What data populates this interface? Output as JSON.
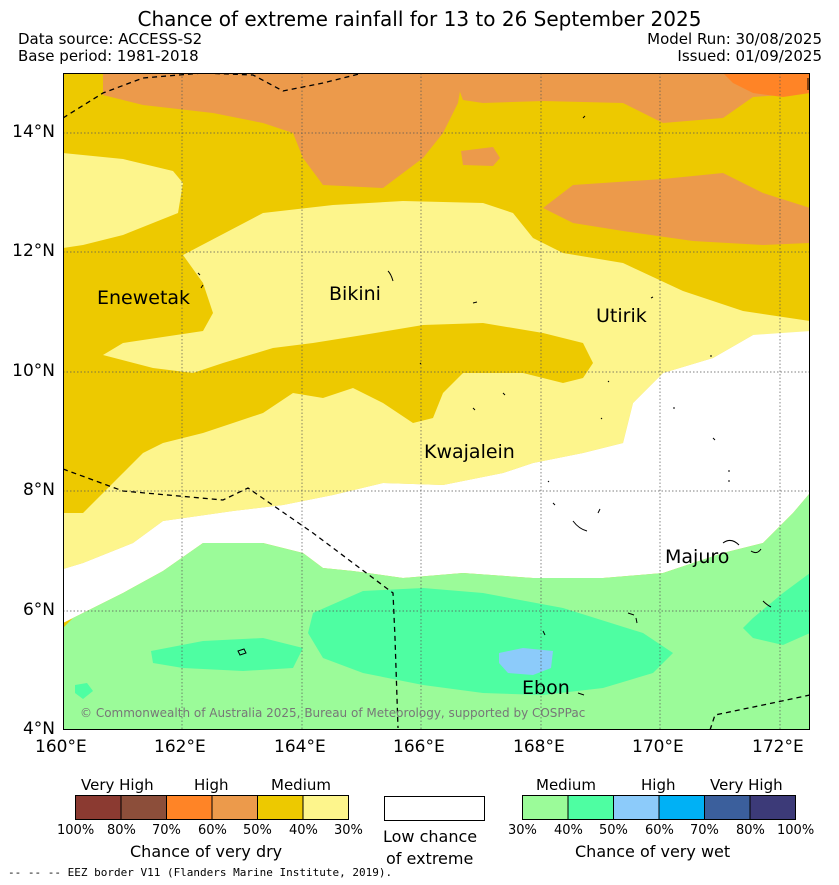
{
  "title": "Chance of extreme rainfall for 13 to 26 September 2025",
  "header": {
    "data_source": "Data source: ACCESS-S2",
    "base_period": "Base period: 1981-2018",
    "model_run": "Model Run: 30/08/2025",
    "issued": "Issued: 01/09/2025"
  },
  "map": {
    "lon_range": [
      160,
      172.5
    ],
    "lat_range": [
      4,
      15
    ],
    "lat_ticks": [
      "4°N",
      "6°N",
      "8°N",
      "10°N",
      "12°N",
      "14°N"
    ],
    "lon_ticks": [
      "160°E",
      "162°E",
      "164°E",
      "166°E",
      "168°E",
      "170°E",
      "172°E"
    ],
    "places": [
      {
        "name": "Enewetak",
        "lon": 160.6,
        "lat": 11.2
      },
      {
        "name": "Bikini",
        "lon": 164.45,
        "lat": 11.3
      },
      {
        "name": "Utirik",
        "lon": 168.95,
        "lat": 10.9
      },
      {
        "name": "Kwajalein",
        "lon": 166.1,
        "lat": 8.6
      },
      {
        "name": "Majuro",
        "lon": 170.1,
        "lat": 6.9
      },
      {
        "name": "Ebon",
        "lon": 167.75,
        "lat": 4.7
      }
    ],
    "copyright": "© Commonwealth of Australia 2025, Bureau of Meteorology, supported by COSPPac",
    "colors": {
      "dry_medium_low": "#fdf58c",
      "dry_medium_high": "#edc900",
      "dry_high_low": "#ec9a4b",
      "dry_high_high": "#ff8426",
      "low_chance": "#ffffff",
      "wet_medium_low": "#9bfb99",
      "wet_medium_high": "#4efea2",
      "wet_high_low": "#8ccbfa",
      "eez_border": "#000000"
    }
  },
  "legend": {
    "dry": {
      "headings": [
        "Very High",
        "High",
        "Medium"
      ],
      "ticks": [
        "100%",
        "80%",
        "70%",
        "60%",
        "50%",
        "40%",
        "30%"
      ],
      "colors": [
        "#8b3a31",
        "#8c4e3a",
        "#ff8426",
        "#ec9a4b",
        "#edc900",
        "#fdf58c"
      ],
      "title": "Chance of very dry"
    },
    "low": {
      "line1": "Low chance",
      "line2": "of extreme",
      "color": "#ffffff"
    },
    "wet": {
      "headings": [
        "Medium",
        "High",
        "Very High"
      ],
      "ticks": [
        "30%",
        "40%",
        "50%",
        "60%",
        "70%",
        "80%",
        "100%"
      ],
      "colors": [
        "#9bfb99",
        "#4efea2",
        "#8ccbfa",
        "#00b1f5",
        "#3b5f9c",
        "#3c3a78"
      ],
      "title": "Chance of very wet"
    }
  },
  "footnote": "--  --  -- EEZ border V11 (Flanders Marine Institute, 2019)."
}
